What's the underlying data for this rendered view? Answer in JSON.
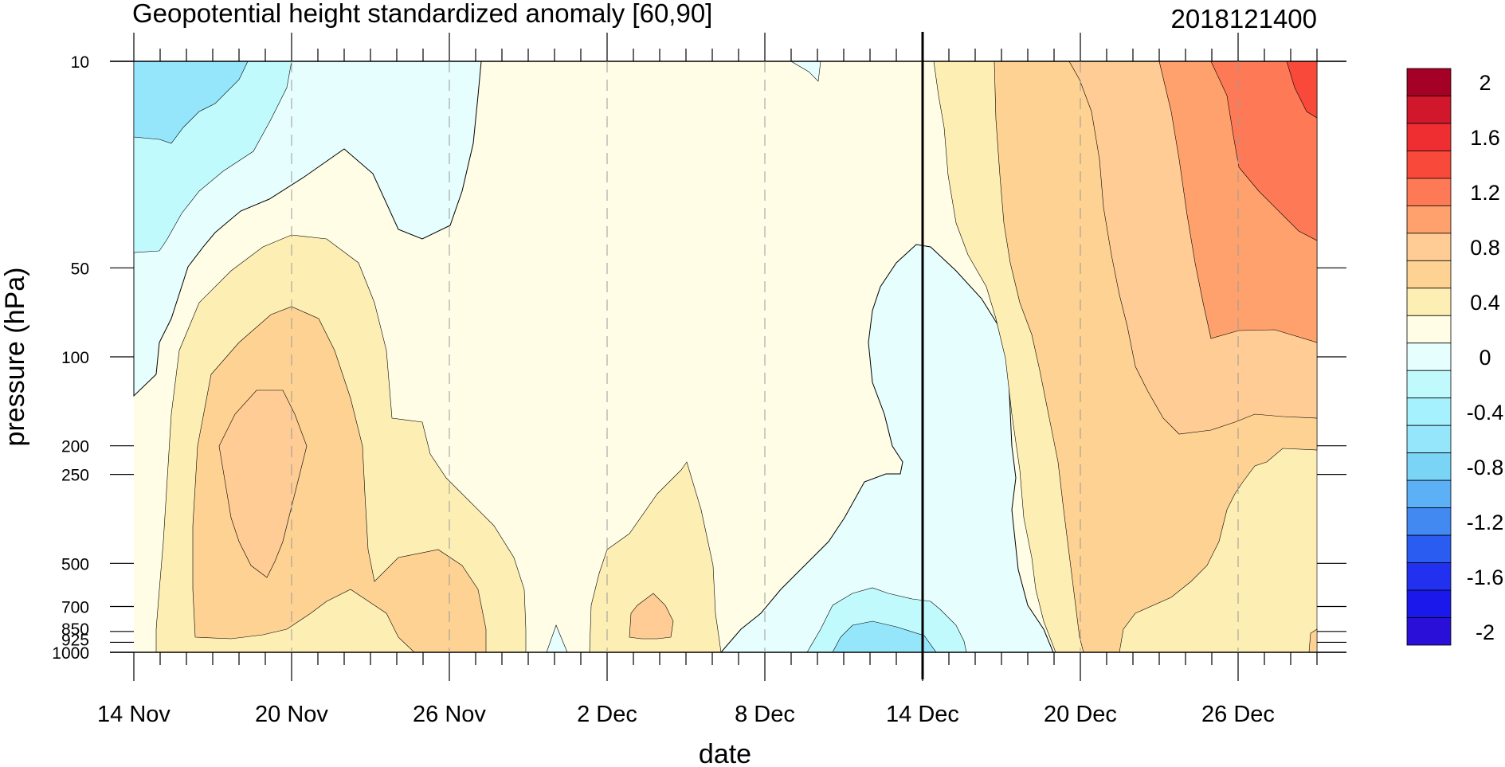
{
  "chart_data": {
    "type": "heatmap",
    "title": "Geopotential height standardized anomaly [60,90]",
    "run_stamp": "2018121400",
    "xlabel": "date",
    "ylabel": "pressure (hPa)",
    "x_range_days": [
      0,
      45
    ],
    "x_ticks": [
      {
        "label": "14 Nov",
        "day": 0
      },
      {
        "label": "20 Nov",
        "day": 6
      },
      {
        "label": "26 Nov",
        "day": 12
      },
      {
        "label": "2 Dec",
        "day": 18
      },
      {
        "label": "8 Dec",
        "day": 24
      },
      {
        "label": "14 Dec",
        "day": 30
      },
      {
        "label": "20 Dec",
        "day": 36
      },
      {
        "label": "26 Dec",
        "day": 42
      }
    ],
    "y_scale": "log",
    "y_range_hpa": [
      1000,
      10
    ],
    "y_ticks": [
      {
        "label": "10",
        "p": 10
      },
      {
        "label": "50",
        "p": 50
      },
      {
        "label": "100",
        "p": 100
      },
      {
        "label": "200",
        "p": 200
      },
      {
        "label": "250",
        "p": 250
      },
      {
        "label": "500",
        "p": 500
      },
      {
        "label": "700",
        "p": 700
      },
      {
        "label": "850",
        "p": 850
      },
      {
        "label": "925",
        "p": 925
      },
      {
        "label": "1000",
        "p": 1000
      }
    ],
    "analysis_boundary_day": 30,
    "color_levels": [
      {
        "label": "2",
        "color": "#a50026"
      },
      {
        "label": "",
        "color": "#d0172b"
      },
      {
        "label": "1.6",
        "color": "#ef2e32"
      },
      {
        "label": "",
        "color": "#f9493b"
      },
      {
        "label": "1.2",
        "color": "#fe7a56"
      },
      {
        "label": "",
        "color": "#fea16d"
      },
      {
        "label": "0.8",
        "color": "#fecc94"
      },
      {
        "label": "",
        "color": "#fdd293"
      },
      {
        "label": "0.4",
        "color": "#fdeeb4"
      },
      {
        "label": "",
        "color": "#fffde6"
      },
      {
        "label": "0",
        "color": "#e6fefe"
      },
      {
        "label": "",
        "color": "#c0fafd"
      },
      {
        "label": "-0.4",
        "color": "#a5f1fd"
      },
      {
        "label": "",
        "color": "#95e6fb"
      },
      {
        "label": "-0.8",
        "color": "#7ad4f6"
      },
      {
        "label": "",
        "color": "#5bb0f6"
      },
      {
        "label": "-1.2",
        "color": "#4289f2"
      },
      {
        "label": "",
        "color": "#2a5cf2"
      },
      {
        "label": "-1.6",
        "color": "#2131ef"
      },
      {
        "label": "",
        "color": "#1a18ea"
      },
      {
        "label": "-2",
        "color": "#2a0fd8"
      }
    ],
    "legend_position": "right"
  }
}
